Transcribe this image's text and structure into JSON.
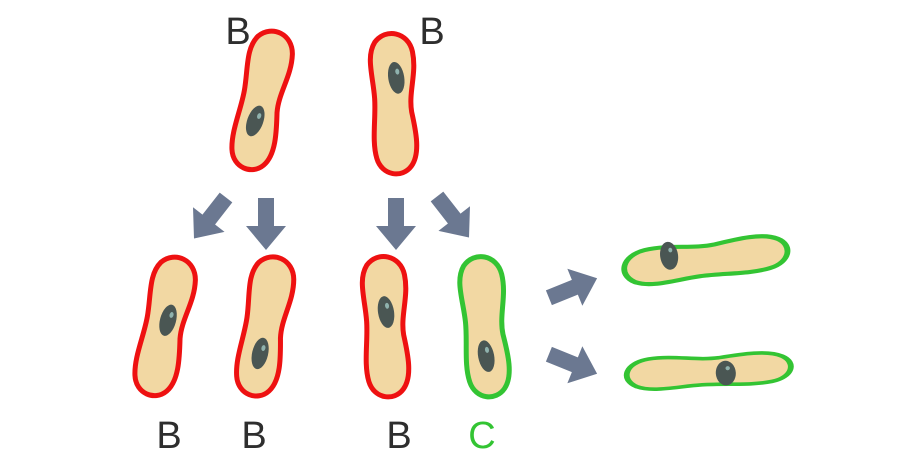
{
  "colors": {
    "cell_fill": "#f2d8a3",
    "parent_outline": "#ee1111",
    "variant_outline": "#33c433",
    "nucleus": "#4a5653",
    "arrow": "#6b7891",
    "label_text": "#2e2e2e",
    "variant_label_text": "#33c433"
  },
  "labels": {
    "parent_left": "B",
    "parent_right": "B",
    "child_1": "B",
    "child_2": "B",
    "child_3": "B",
    "child_4": "C"
  }
}
